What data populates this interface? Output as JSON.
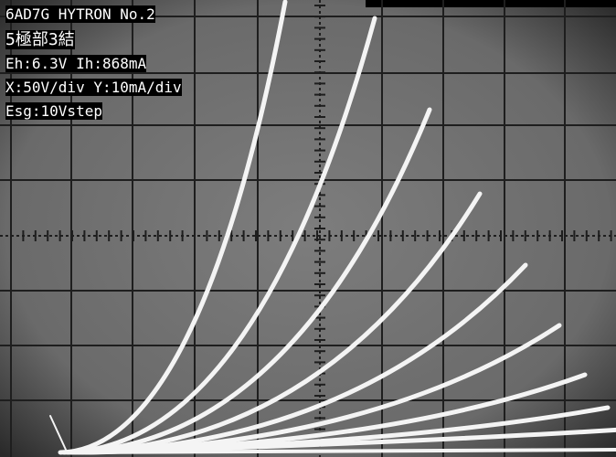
{
  "overlay": {
    "lines": [
      "6AD7G HYTRON No.2",
      "5極部3結",
      "Eh:6.3V Ih:868mA",
      "X:50V/div Y:10mA/div",
      "Esg:10Vstep"
    ]
  }
}
